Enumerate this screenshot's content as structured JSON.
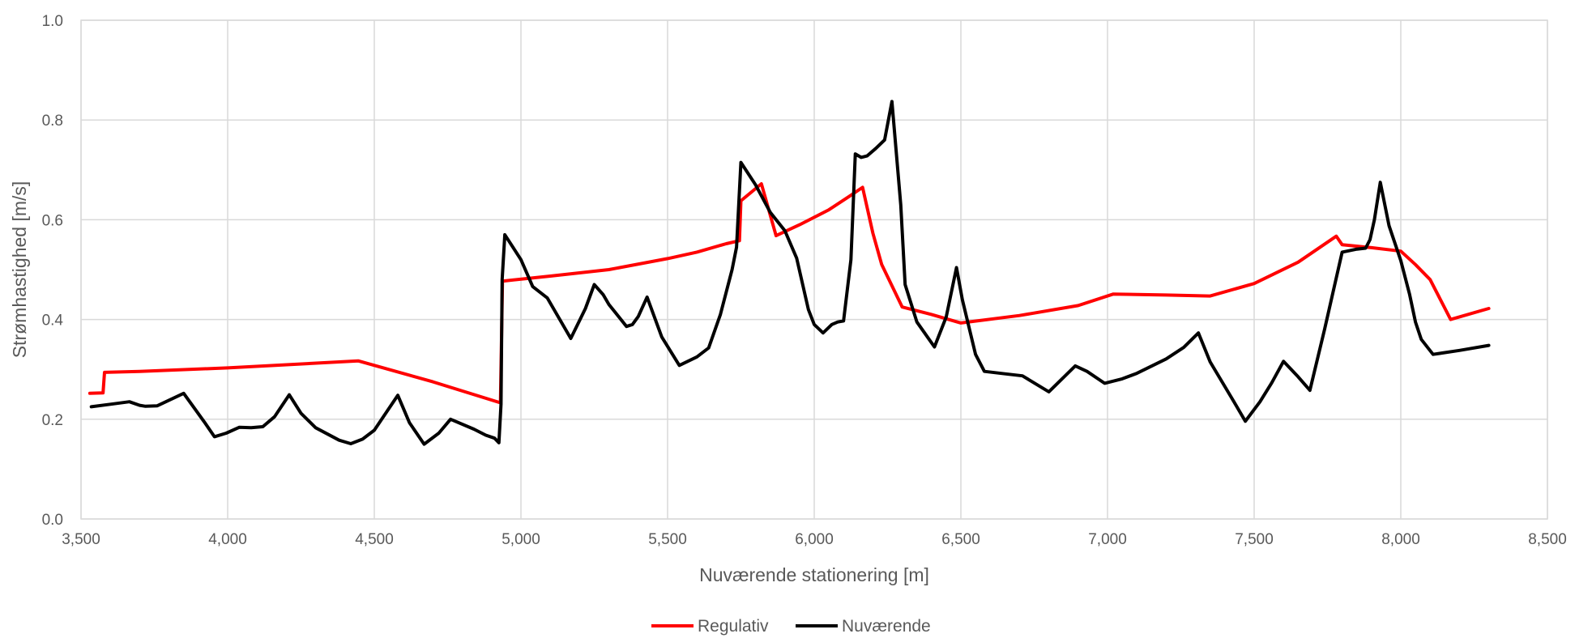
{
  "chart_data": {
    "type": "line",
    "title": "",
    "xlabel": "Nuværende stationering [m]",
    "ylabel": "Strømhastighed [m/s]",
    "xlim": [
      3500,
      8500
    ],
    "ylim": [
      0,
      1.0
    ],
    "x_ticks": [
      3500,
      4000,
      4500,
      5000,
      5500,
      6000,
      6500,
      7000,
      7500,
      8000,
      8500
    ],
    "x_tick_labels": [
      "3,500",
      "4,000",
      "4,500",
      "5,000",
      "5,500",
      "6,000",
      "6,500",
      "7,000",
      "7,500",
      "8,000",
      "8,500"
    ],
    "y_ticks": [
      0,
      0.2,
      0.4,
      0.6,
      0.8,
      1.0
    ],
    "y_tick_labels": [
      "0.0",
      "0.2",
      "0.4",
      "0.6",
      "0.8",
      "1.0"
    ],
    "grid": true,
    "legend_position": "bottom-center",
    "series": [
      {
        "name": "Regulativ",
        "color": "#ff0000",
        "x": [
          3530,
          3575,
          3580,
          3700,
          4000,
          4445,
          4700,
          4930,
          4937,
          5100,
          5300,
          5500,
          5600,
          5700,
          5745,
          5750,
          5820,
          5870,
          5950,
          6050,
          6120,
          6165,
          6200,
          6230,
          6300,
          6400,
          6500,
          6700,
          6900,
          7020,
          7200,
          7350,
          7500,
          7650,
          7780,
          7800,
          7900,
          8000,
          8050,
          8100,
          8170,
          8300
        ],
        "y": [
          0.252,
          0.253,
          0.294,
          0.296,
          0.303,
          0.317,
          0.275,
          0.233,
          0.477,
          0.487,
          0.5,
          0.522,
          0.535,
          0.552,
          0.558,
          0.638,
          0.672,
          0.568,
          0.59,
          0.62,
          0.647,
          0.665,
          0.573,
          0.51,
          0.425,
          0.41,
          0.393,
          0.408,
          0.428,
          0.451,
          0.449,
          0.447,
          0.472,
          0.515,
          0.567,
          0.55,
          0.544,
          0.537,
          0.51,
          0.48,
          0.4,
          0.422
        ]
      },
      {
        "name": "Nuværende",
        "color": "#000000",
        "x": [
          3535,
          3600,
          3665,
          3700,
          3720,
          3760,
          3850,
          3920,
          3955,
          3995,
          4040,
          4080,
          4120,
          4160,
          4210,
          4250,
          4300,
          4380,
          4420,
          4460,
          4500,
          4580,
          4620,
          4670,
          4720,
          4760,
          4840,
          4880,
          4910,
          4925,
          4932,
          4936,
          4945,
          5000,
          5040,
          5090,
          5170,
          5200,
          5220,
          5250,
          5280,
          5300,
          5360,
          5380,
          5400,
          5430,
          5480,
          5540,
          5600,
          5640,
          5680,
          5720,
          5735,
          5750,
          5800,
          5850,
          5900,
          5940,
          5980,
          6000,
          6030,
          6060,
          6080,
          6100,
          6125,
          6140,
          6160,
          6180,
          6210,
          6240,
          6265,
          6295,
          6310,
          6350,
          6410,
          6450,
          6485,
          6505,
          6550,
          6580,
          6650,
          6710,
          6800,
          6890,
          6930,
          6990,
          7050,
          7100,
          7200,
          7260,
          7310,
          7350,
          7430,
          7470,
          7520,
          7560,
          7600,
          7650,
          7690,
          7740,
          7800,
          7850,
          7880,
          7895,
          7910,
          7930,
          7960,
          8000,
          8030,
          8050,
          8070,
          8110,
          8200,
          8300
        ],
        "y": [
          0.225,
          0.23,
          0.235,
          0.228,
          0.226,
          0.227,
          0.252,
          0.195,
          0.165,
          0.172,
          0.184,
          0.183,
          0.185,
          0.205,
          0.249,
          0.212,
          0.183,
          0.158,
          0.151,
          0.16,
          0.178,
          0.248,
          0.193,
          0.15,
          0.172,
          0.2,
          0.18,
          0.168,
          0.162,
          0.153,
          0.23,
          0.48,
          0.57,
          0.52,
          0.466,
          0.443,
          0.362,
          0.398,
          0.422,
          0.47,
          0.45,
          0.43,
          0.386,
          0.39,
          0.406,
          0.445,
          0.365,
          0.308,
          0.325,
          0.343,
          0.41,
          0.5,
          0.545,
          0.715,
          0.67,
          0.615,
          0.578,
          0.523,
          0.42,
          0.39,
          0.373,
          0.39,
          0.395,
          0.397,
          0.52,
          0.732,
          0.725,
          0.728,
          0.743,
          0.76,
          0.837,
          0.63,
          0.47,
          0.395,
          0.345,
          0.405,
          0.504,
          0.44,
          0.33,
          0.296,
          0.291,
          0.287,
          0.255,
          0.307,
          0.296,
          0.272,
          0.281,
          0.292,
          0.321,
          0.344,
          0.373,
          0.315,
          0.236,
          0.196,
          0.235,
          0.273,
          0.316,
          0.285,
          0.258,
          0.38,
          0.535,
          0.541,
          0.543,
          0.56,
          0.6,
          0.675,
          0.588,
          0.518,
          0.45,
          0.395,
          0.36,
          0.33,
          0.338,
          0.348
        ]
      }
    ]
  }
}
